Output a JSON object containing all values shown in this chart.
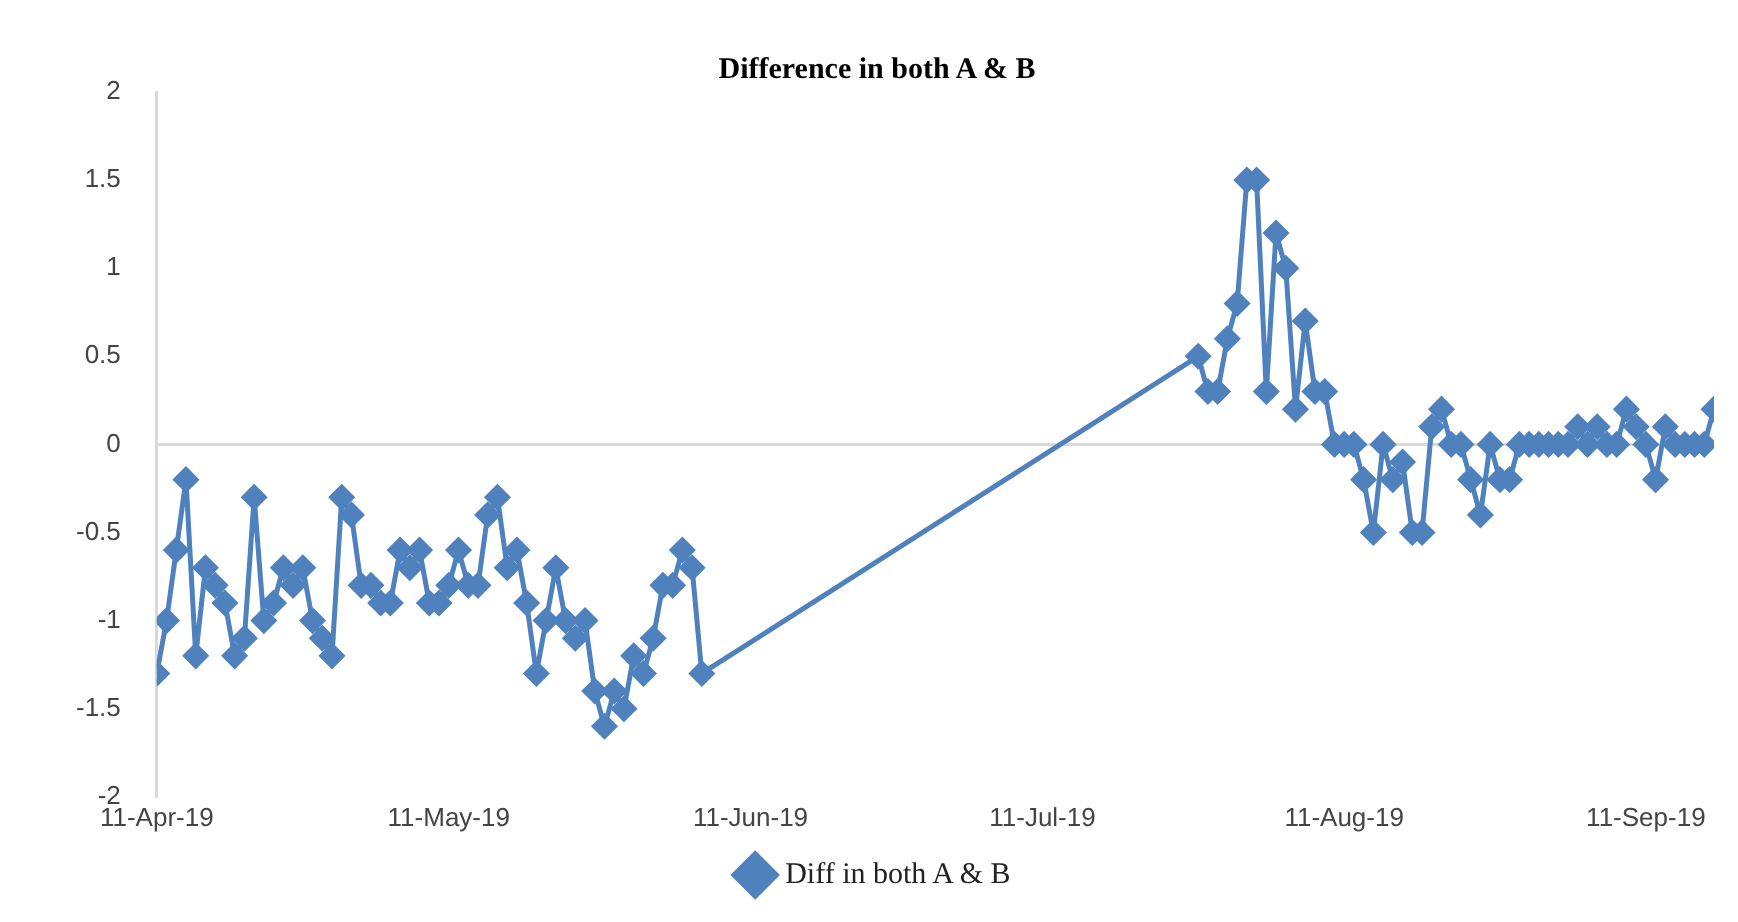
{
  "chart_data": {
    "type": "line",
    "title": "Difference in both A & B",
    "x": [
      "2019-04-11",
      "2019-04-12",
      "2019-04-13",
      "2019-04-14",
      "2019-04-15",
      "2019-04-16",
      "2019-04-17",
      "2019-04-18",
      "2019-04-19",
      "2019-04-20",
      "2019-04-21",
      "2019-04-22",
      "2019-04-23",
      "2019-04-24",
      "2019-04-25",
      "2019-04-26",
      "2019-04-27",
      "2019-04-28",
      "2019-04-29",
      "2019-04-30",
      "2019-05-01",
      "2019-05-02",
      "2019-05-03",
      "2019-05-04",
      "2019-05-05",
      "2019-05-06",
      "2019-05-07",
      "2019-05-08",
      "2019-05-09",
      "2019-05-10",
      "2019-05-11",
      "2019-05-12",
      "2019-05-13",
      "2019-05-14",
      "2019-05-15",
      "2019-05-16",
      "2019-05-17",
      "2019-05-18",
      "2019-05-19",
      "2019-05-20",
      "2019-05-21",
      "2019-05-22",
      "2019-05-23",
      "2019-05-24",
      "2019-05-25",
      "2019-05-26",
      "2019-05-27",
      "2019-05-28",
      "2019-05-29",
      "2019-05-30",
      "2019-05-31",
      "2019-06-01",
      "2019-06-02",
      "2019-06-03",
      "2019-06-04",
      "2019-06-05",
      "2019-06-06",
      "2019-07-27",
      "2019-07-28",
      "2019-07-29",
      "2019-07-30",
      "2019-07-31",
      "2019-08-01",
      "2019-08-02",
      "2019-08-03",
      "2019-08-04",
      "2019-08-05",
      "2019-08-06",
      "2019-08-07",
      "2019-08-08",
      "2019-08-09",
      "2019-08-10",
      "2019-08-11",
      "2019-08-12",
      "2019-08-13",
      "2019-08-14",
      "2019-08-15",
      "2019-08-16",
      "2019-08-17",
      "2019-08-18",
      "2019-08-19",
      "2019-08-20",
      "2019-08-21",
      "2019-08-22",
      "2019-08-23",
      "2019-08-24",
      "2019-08-25",
      "2019-08-26",
      "2019-08-27",
      "2019-08-28",
      "2019-08-29",
      "2019-08-30",
      "2019-08-31",
      "2019-09-01",
      "2019-09-02",
      "2019-09-03",
      "2019-09-04",
      "2019-09-05",
      "2019-09-06",
      "2019-09-07",
      "2019-09-08",
      "2019-09-09",
      "2019-09-10",
      "2019-09-11",
      "2019-09-12",
      "2019-09-13",
      "2019-09-14",
      "2019-09-15",
      "2019-09-16",
      "2019-09-17",
      "2019-09-18"
    ],
    "series": [
      {
        "name": "Diff in both A & B",
        "color": "#4f81bd",
        "values": [
          -1.3,
          -1.0,
          -0.6,
          -0.2,
          -1.2,
          -0.7,
          -0.8,
          -0.9,
          -1.2,
          -1.1,
          -0.3,
          -1.0,
          -0.9,
          -0.7,
          -0.8,
          -0.7,
          -1.0,
          -1.1,
          -1.2,
          -0.3,
          -0.4,
          -0.8,
          -0.8,
          -0.9,
          -0.9,
          -0.6,
          -0.7,
          -0.6,
          -0.9,
          -0.9,
          -0.8,
          -0.6,
          -0.8,
          -0.8,
          -0.4,
          -0.3,
          -0.7,
          -0.6,
          -0.9,
          -1.3,
          -1.0,
          -0.7,
          -1.0,
          -1.1,
          -1.0,
          -1.4,
          -1.6,
          -1.4,
          -1.5,
          -1.2,
          -1.3,
          -1.1,
          -0.8,
          -0.8,
          -0.6,
          -0.7,
          -1.3,
          0.5,
          0.3,
          0.3,
          0.6,
          0.8,
          1.5,
          1.5,
          0.3,
          1.2,
          1.0,
          0.2,
          0.7,
          0.3,
          0.3,
          0,
          0,
          0,
          -0.2,
          -0.5,
          0,
          -0.2,
          -0.1,
          -0.5,
          -0.5,
          0.1,
          0.2,
          0,
          0,
          -0.2,
          -0.4,
          0,
          -0.2,
          -0.2,
          0,
          0,
          0,
          0,
          0,
          0,
          0.1,
          0,
          0.1,
          0,
          0,
          0.2,
          0.1,
          0,
          -0.2,
          0.1,
          0,
          0,
          0,
          0,
          0.2
        ]
      }
    ],
    "xlim": [
      "2019-04-11",
      "2019-09-18"
    ],
    "xticks": [
      {
        "value": "2019-04-11",
        "label": "11-Apr-19"
      },
      {
        "value": "2019-05-11",
        "label": "11-May-19"
      },
      {
        "value": "2019-06-11",
        "label": "11-Jun-19"
      },
      {
        "value": "2019-07-11",
        "label": "11-Jul-19"
      },
      {
        "value": "2019-08-11",
        "label": "11-Aug-19"
      },
      {
        "value": "2019-09-11",
        "label": "11-Sep-19"
      }
    ],
    "ylim": [
      -2,
      2
    ],
    "yticks": [
      -2,
      -1.5,
      -1,
      -0.5,
      0,
      0.5,
      1,
      1.5,
      2
    ],
    "ref_lines": [
      {
        "axis": "y",
        "value": 0,
        "color": "#d9d9d9"
      }
    ],
    "grid": false,
    "legend": "bottom",
    "marker": "diamond",
    "line_style": "solid"
  }
}
